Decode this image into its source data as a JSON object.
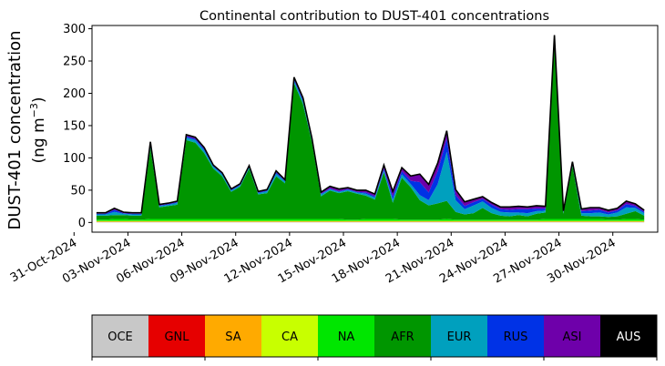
{
  "chart_data": {
    "type": "area",
    "title": "Continental contribution to DUST-401 concentrations",
    "ylabel_line1": "DUST-401 concentration",
    "ylabel_line2_prefix": "(ng m",
    "ylabel_line2_sup": "−3",
    "ylabel_line2_suffix": ")",
    "ylim": [
      -15,
      305
    ],
    "yticks": [
      0,
      50,
      100,
      150,
      200,
      250,
      300
    ],
    "xlim": [
      "2024-11-01T00:00",
      "2024-12-02T12:00"
    ],
    "xticks": [
      "31-Oct-2024",
      "03-Nov-2024",
      "06-Nov-2024",
      "09-Nov-2024",
      "12-Nov-2024",
      "15-Nov-2024",
      "18-Nov-2024",
      "21-Nov-2024",
      "24-Nov-2024",
      "27-Nov-2024",
      "30-Nov-2024"
    ],
    "xtick_dates": [
      "2024-10-31",
      "2024-11-03",
      "2024-11-06",
      "2024-11-09",
      "2024-11-12",
      "2024-11-15",
      "2024-11-18",
      "2024-11-21",
      "2024-11-24",
      "2024-11-27",
      "2024-11-30"
    ],
    "legend": [
      {
        "name": "OCE",
        "color": "#c8c8c8",
        "text_color": "#000000"
      },
      {
        "name": "GNL",
        "color": "#e60000",
        "text_color": "#000000"
      },
      {
        "name": "SA",
        "color": "#ffaa00",
        "text_color": "#000000"
      },
      {
        "name": "CA",
        "color": "#c8ff00",
        "text_color": "#000000"
      },
      {
        "name": "NA",
        "color": "#00e600",
        "text_color": "#000000"
      },
      {
        "name": "AFR",
        "color": "#009600",
        "text_color": "#000000"
      },
      {
        "name": "EUR",
        "color": "#00a0be",
        "text_color": "#000000"
      },
      {
        "name": "RUS",
        "color": "#0032e6",
        "text_color": "#000000"
      },
      {
        "name": "ASI",
        "color": "#6e00aa",
        "text_color": "#000000"
      },
      {
        "name": "AUS",
        "color": "#000000",
        "text_color": "#ffffff"
      }
    ],
    "x": [
      "2024-11-01T06:00",
      "2024-11-01T18:00",
      "2024-11-02T06:00",
      "2024-11-02T18:00",
      "2024-11-03T06:00",
      "2024-11-03T18:00",
      "2024-11-04T06:00",
      "2024-11-04T18:00",
      "2024-11-05T06:00",
      "2024-11-05T18:00",
      "2024-11-06T06:00",
      "2024-11-06T18:00",
      "2024-11-07T06:00",
      "2024-11-07T18:00",
      "2024-11-08T06:00",
      "2024-11-08T18:00",
      "2024-11-09T06:00",
      "2024-11-09T18:00",
      "2024-11-10T06:00",
      "2024-11-10T18:00",
      "2024-11-11T06:00",
      "2024-11-11T18:00",
      "2024-11-12T06:00",
      "2024-11-12T18:00",
      "2024-11-13T06:00",
      "2024-11-13T18:00",
      "2024-11-14T06:00",
      "2024-11-14T18:00",
      "2024-11-15T06:00",
      "2024-11-15T18:00",
      "2024-11-16T06:00",
      "2024-11-16T18:00",
      "2024-11-17T06:00",
      "2024-11-17T18:00",
      "2024-11-18T06:00",
      "2024-11-18T18:00",
      "2024-11-19T06:00",
      "2024-11-19T18:00",
      "2024-11-20T06:00",
      "2024-11-20T18:00",
      "2024-11-21T06:00",
      "2024-11-21T18:00",
      "2024-11-22T06:00",
      "2024-11-22T18:00",
      "2024-11-23T06:00",
      "2024-11-23T18:00",
      "2024-11-24T06:00",
      "2024-11-24T18:00",
      "2024-11-25T06:00",
      "2024-11-25T18:00",
      "2024-11-26T06:00",
      "2024-11-26T18:00",
      "2024-11-27T06:00",
      "2024-11-27T18:00",
      "2024-11-28T06:00",
      "2024-11-28T18:00",
      "2024-11-29T06:00",
      "2024-11-29T18:00",
      "2024-11-30T06:00",
      "2024-11-30T18:00",
      "2024-12-01T06:00",
      "2024-12-01T18:00"
    ],
    "series": [
      {
        "name": "OCE",
        "values": [
          0.5,
          0.5,
          0.5,
          0.5,
          0.5,
          0.5,
          0.5,
          0.5,
          0.5,
          0.5,
          0.5,
          0.5,
          0.5,
          0.5,
          0.5,
          0.5,
          0.5,
          0.5,
          0.5,
          0.5,
          0.5,
          0.5,
          0.5,
          0.5,
          0.5,
          0.5,
          0.5,
          0.5,
          0.5,
          0.5,
          0.5,
          0.5,
          0.5,
          0.5,
          0.5,
          0.5,
          0.5,
          0.5,
          0.5,
          0.5,
          0.5,
          0.5,
          0.5,
          0.5,
          0.5,
          0.5,
          0.5,
          0.5,
          0.5,
          0.5,
          0.5,
          0.5,
          0.5,
          0.5,
          0.5,
          0.5,
          0.5,
          0.5,
          0.5,
          0.5,
          0.5,
          0.5
        ]
      },
      {
        "name": "GNL",
        "values": [
          0.5,
          0.5,
          0.5,
          0.5,
          0.5,
          0.5,
          0.5,
          0.5,
          0.5,
          0.5,
          0.5,
          0.5,
          0.5,
          0.5,
          0.5,
          0.5,
          0.5,
          0.5,
          0.5,
          0.5,
          0.5,
          0.5,
          0.5,
          0.5,
          0.5,
          0.5,
          0.5,
          0.5,
          0.5,
          0.5,
          0.5,
          0.5,
          0.5,
          0.5,
          0.5,
          0.5,
          0.5,
          0.5,
          0.5,
          0.5,
          0.5,
          0.5,
          0.5,
          0.5,
          0.5,
          0.5,
          0.5,
          0.5,
          0.5,
          0.5,
          0.5,
          0.5,
          0.5,
          0.5,
          0.5,
          0.5,
          0.5,
          0.5,
          0.5,
          0.5,
          0.5,
          0.5
        ]
      },
      {
        "name": "SA",
        "values": [
          0.5,
          0.5,
          0.5,
          0.5,
          0.5,
          0.5,
          0.5,
          0.5,
          0.5,
          0.5,
          0.5,
          0.5,
          0.5,
          0.5,
          0.5,
          0.5,
          0.5,
          0.5,
          0.5,
          0.5,
          0.5,
          0.5,
          0.5,
          0.5,
          0.5,
          0.5,
          0.5,
          0.5,
          0.5,
          0.5,
          0.5,
          0.5,
          0.5,
          0.5,
          0.5,
          0.5,
          0.5,
          0.5,
          0.5,
          0.5,
          0.5,
          0.5,
          0.5,
          0.5,
          0.5,
          0.5,
          0.5,
          0.5,
          0.5,
          0.5,
          0.5,
          0.5,
          0.5,
          0.5,
          0.5,
          0.5,
          0.5,
          0.5,
          0.5,
          0.5,
          0.5,
          0.5
        ]
      },
      {
        "name": "CA",
        "values": [
          1,
          1,
          1,
          1,
          1,
          1,
          1,
          1,
          1,
          1,
          1,
          1,
          1,
          1,
          1,
          1,
          1,
          1,
          1,
          1,
          1,
          1,
          1,
          1,
          1,
          1,
          1,
          1,
          1,
          1,
          1,
          1,
          1,
          1,
          1,
          1,
          1,
          1,
          1,
          1,
          1,
          1,
          1,
          1,
          1,
          1,
          1,
          1,
          1,
          1,
          1,
          1,
          1,
          1,
          1,
          1,
          1,
          1,
          1,
          1,
          1,
          1
        ]
      },
      {
        "name": "NA",
        "values": [
          2,
          2,
          3,
          3,
          2,
          2,
          3,
          3,
          3,
          3,
          3,
          3,
          3,
          3,
          3,
          3,
          3,
          3,
          3,
          3,
          3,
          3,
          3,
          3,
          3,
          3,
          3,
          3,
          2,
          2,
          3,
          3,
          3,
          3,
          2,
          2,
          2,
          2,
          2,
          3,
          2,
          2,
          2,
          2,
          2,
          2,
          2,
          2,
          2,
          2,
          3,
          3,
          3,
          3,
          3,
          3,
          3,
          2,
          2,
          3,
          3,
          2
        ]
      },
      {
        "name": "AFR",
        "values": [
          6,
          6,
          6,
          6,
          6,
          6,
          110,
          18,
          20,
          22,
          122,
          118,
          102,
          78,
          66,
          42,
          50,
          78,
          38,
          40,
          66,
          55,
          210,
          178,
          118,
          35,
          44,
          40,
          44,
          40,
          36,
          30,
          72,
          25,
          65,
          50,
          30,
          22,
          25,
          28,
          12,
          8,
          10,
          18,
          10,
          6,
          5,
          7,
          5,
          9,
          10,
          278,
          8,
          82,
          5,
          4,
          4,
          4,
          5,
          8,
          12,
          6
        ]
      },
      {
        "name": "EUR",
        "values": [
          2,
          2,
          5,
          2,
          2,
          2,
          5,
          2,
          2,
          3,
          4,
          4,
          4,
          3,
          3,
          2,
          2,
          2,
          2,
          3,
          4,
          3,
          4,
          4,
          3,
          3,
          2,
          2,
          2,
          2,
          3,
          3,
          3,
          5,
          5,
          5,
          8,
          8,
          30,
          76,
          18,
          8,
          12,
          10,
          8,
          6,
          6,
          4,
          5,
          4,
          3,
          2,
          2,
          2,
          4,
          5,
          6,
          4,
          6,
          10,
          5,
          4
        ]
      },
      {
        "name": "RUS",
        "values": [
          1,
          1,
          3,
          1,
          1,
          1,
          2,
          1,
          1,
          1,
          2,
          2,
          2,
          1,
          1,
          1,
          1,
          1,
          1,
          1,
          2,
          1,
          2,
          2,
          1,
          1,
          1,
          1,
          1,
          1,
          2,
          2,
          3,
          5,
          5,
          5,
          20,
          12,
          20,
          20,
          8,
          5,
          5,
          4,
          5,
          4,
          4,
          5,
          6,
          4,
          3,
          2,
          1,
          2,
          3,
          4,
          4,
          3,
          3,
          5,
          3,
          2
        ]
      },
      {
        "name": "ASI",
        "values": [
          1,
          1,
          2,
          1,
          1,
          1,
          2,
          1,
          1,
          1,
          2,
          2,
          2,
          1,
          1,
          1,
          1,
          1,
          1,
          1,
          2,
          1,
          3,
          3,
          2,
          2,
          3,
          3,
          2,
          2,
          3,
          3,
          5,
          7,
          5,
          7,
          12,
          12,
          12,
          12,
          8,
          6,
          4,
          3,
          3,
          3,
          4,
          4,
          3,
          4,
          3,
          2,
          1,
          2,
          3,
          4,
          3,
          3,
          3,
          4,
          3,
          2
        ]
      },
      {
        "name": "AUS",
        "values": [
          0.5,
          0.5,
          0.5,
          0.5,
          0.5,
          0.5,
          0.5,
          0.5,
          0.5,
          0.5,
          0.5,
          0.5,
          0.5,
          0.5,
          0.5,
          0.5,
          0.5,
          0.5,
          0.5,
          0.5,
          0.5,
          0.5,
          0.5,
          0.5,
          0.5,
          0.5,
          0.5,
          0.5,
          0.5,
          0.5,
          0.5,
          0.5,
          0.5,
          0.5,
          0.5,
          0.5,
          0.5,
          0.5,
          0.5,
          0.5,
          0.5,
          0.5,
          0.5,
          0.5,
          0.5,
          0.5,
          0.5,
          0.5,
          0.5,
          0.5,
          0.5,
          0.5,
          0.5,
          0.5,
          0.5,
          0.5,
          0.5,
          0.5,
          0.5,
          0.5,
          0.5,
          0.5
        ]
      }
    ],
    "grid": false,
    "legend_placement": "bottom"
  }
}
